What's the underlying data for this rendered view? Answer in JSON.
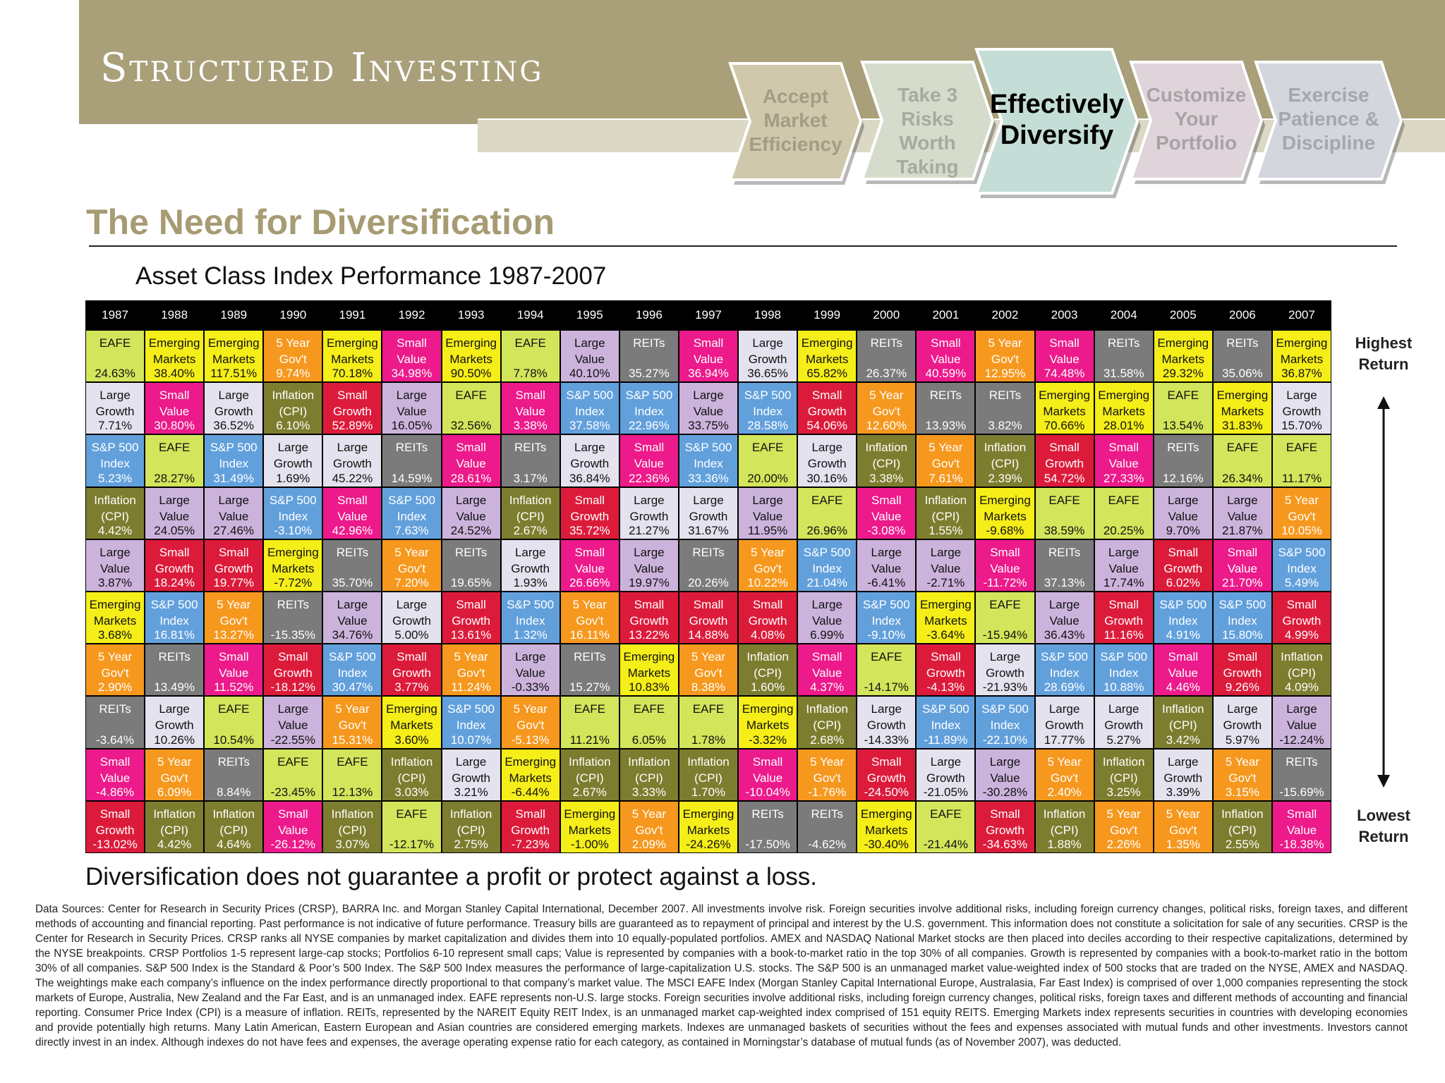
{
  "header": {
    "brand": "Structured Investing",
    "steps": [
      {
        "label": "Accept\nMarket\nEfficiency",
        "active": false,
        "fill": "#cfc8aa",
        "text_color": "#a39c87"
      },
      {
        "label": "Take 3\nRisks Worth\nTaking",
        "active": false,
        "fill": "#d6dccb",
        "text_color": "#a7ab9e"
      },
      {
        "label": "Effectively\nDiversify",
        "active": true,
        "fill": "#c4ddd7",
        "text_color": "#000000"
      },
      {
        "label": "Customize\nYour\nPortfolio",
        "active": false,
        "fill": "#dfd4da",
        "text_color": "#aaa1a6"
      },
      {
        "label": "Exercise\nPatience &\nDiscipline",
        "active": false,
        "fill": "#d3d6dd",
        "text_color": "#a4a7ae"
      }
    ]
  },
  "section_title": "The Need for Diversification",
  "chart_data": {
    "type": "table",
    "title": "Asset Class Index Performance 1987-2007",
    "years": [
      "1987",
      "1988",
      "1989",
      "1990",
      "1991",
      "1992",
      "1993",
      "1994",
      "1995",
      "1996",
      "1997",
      "1998",
      "1999",
      "2000",
      "2001",
      "2002",
      "2003",
      "2004",
      "2005",
      "2006",
      "2007"
    ],
    "rank_labels": {
      "top": "Highest\nReturn",
      "bottom": "Lowest\nReturn"
    },
    "asset_classes": {
      "EAFE": {
        "label": "EAFE",
        "color": "#d3e55a",
        "text": "#111111"
      },
      "EM": {
        "label": "Emerging\nMarkets",
        "color": "#f5ee18",
        "text": "#111111"
      },
      "LG": {
        "label": "Large\nGrowth",
        "color": "#e4e2ee",
        "text": "#111111"
      },
      "LV": {
        "label": "Large\nValue",
        "color": "#ccb3dc",
        "text": "#111111"
      },
      "SP": {
        "label": "S&P 500\nIndex",
        "color": "#62a0dc",
        "text": "#ffffff"
      },
      "SG": {
        "label": "Small\nGrowth",
        "color": "#dc1b3b",
        "text": "#ffffff"
      },
      "SV": {
        "label": "Small\nValue",
        "color": "#ec1a8a",
        "text": "#ffffff"
      },
      "5Y": {
        "label": "5 Year\nGov't",
        "color": "#f6981e",
        "text": "#ffffff"
      },
      "CPI": {
        "label": "Inflation\n(CPI)",
        "color": "#7d7d2f",
        "text": "#ffffff"
      },
      "REIT": {
        "label": "REITs",
        "color": "#7b7b7b",
        "text": "#ffffff"
      }
    },
    "columns": [
      [
        [
          "EAFE",
          "24.63%"
        ],
        [
          "LG",
          "7.71%"
        ],
        [
          "SP",
          "5.23%"
        ],
        [
          "CPI",
          "4.42%"
        ],
        [
          "LV",
          "3.87%"
        ],
        [
          "EM",
          "3.68%"
        ],
        [
          "5Y",
          "2.90%"
        ],
        [
          "REIT",
          "-3.64%"
        ],
        [
          "SV",
          "-4.86%"
        ],
        [
          "SG",
          "-13.02%"
        ]
      ],
      [
        [
          "EM",
          "38.40%"
        ],
        [
          "SV",
          "30.80%"
        ],
        [
          "EAFE",
          "28.27%"
        ],
        [
          "LV",
          "24.05%"
        ],
        [
          "SG",
          "18.24%"
        ],
        [
          "SP",
          "16.81%"
        ],
        [
          "REIT",
          "13.49%"
        ],
        [
          "LG",
          "10.26%"
        ],
        [
          "5Y",
          "6.09%"
        ],
        [
          "CPI",
          "4.42%"
        ]
      ],
      [
        [
          "EM",
          "117.51%"
        ],
        [
          "LG",
          "36.52%"
        ],
        [
          "SP",
          "31.49%"
        ],
        [
          "LV",
          "27.46%"
        ],
        [
          "SG",
          "19.77%"
        ],
        [
          "5Y",
          "13.27%"
        ],
        [
          "SV",
          "11.52%"
        ],
        [
          "EAFE",
          "10.54%"
        ],
        [
          "REIT",
          "8.84%"
        ],
        [
          "CPI",
          "4.64%"
        ]
      ],
      [
        [
          "5Y",
          "9.74%"
        ],
        [
          "CPI",
          "6.10%"
        ],
        [
          "LG",
          "1.69%"
        ],
        [
          "SP",
          "-3.10%"
        ],
        [
          "EM",
          "-7.72%"
        ],
        [
          "REIT",
          "-15.35%"
        ],
        [
          "SG",
          "-18.12%"
        ],
        [
          "LV",
          "-22.55%"
        ],
        [
          "EAFE",
          "-23.45%"
        ],
        [
          "SV",
          "-26.12%"
        ]
      ],
      [
        [
          "EM",
          "70.18%"
        ],
        [
          "SG",
          "52.89%"
        ],
        [
          "LG",
          "45.22%"
        ],
        [
          "SV",
          "42.96%"
        ],
        [
          "REIT",
          "35.70%"
        ],
        [
          "LV",
          "34.76%"
        ],
        [
          "SP",
          "30.47%"
        ],
        [
          "5Y",
          "15.31%"
        ],
        [
          "EAFE",
          "12.13%"
        ],
        [
          "CPI",
          "3.07%"
        ]
      ],
      [
        [
          "SV",
          "34.98%"
        ],
        [
          "LV",
          "16.05%"
        ],
        [
          "REIT",
          "14.59%"
        ],
        [
          "SP",
          "7.63%"
        ],
        [
          "5Y",
          "7.20%"
        ],
        [
          "LG",
          "5.00%"
        ],
        [
          "SG",
          "3.77%"
        ],
        [
          "EM",
          "3.60%"
        ],
        [
          "CPI",
          "3.03%"
        ],
        [
          "EAFE",
          "-12.17%"
        ]
      ],
      [
        [
          "EM",
          "90.50%"
        ],
        [
          "EAFE",
          "32.56%"
        ],
        [
          "SV",
          "28.61%"
        ],
        [
          "LV",
          "24.52%"
        ],
        [
          "REIT",
          "19.65%"
        ],
        [
          "SG",
          "13.61%"
        ],
        [
          "5Y",
          "11.24%"
        ],
        [
          "SP",
          "10.07%"
        ],
        [
          "LG",
          "3.21%"
        ],
        [
          "CPI",
          "2.75%"
        ]
      ],
      [
        [
          "EAFE",
          "7.78%"
        ],
        [
          "SV",
          "3.38%"
        ],
        [
          "REIT",
          "3.17%"
        ],
        [
          "CPI",
          "2.67%"
        ],
        [
          "LG",
          "1.93%"
        ],
        [
          "SP",
          "1.32%"
        ],
        [
          "LV",
          "-0.33%"
        ],
        [
          "5Y",
          "-5.13%"
        ],
        [
          "EM",
          "-6.44%"
        ],
        [
          "SG",
          "-7.23%"
        ]
      ],
      [
        [
          "LV",
          "40.10%"
        ],
        [
          "SP",
          "37.58%"
        ],
        [
          "LG",
          "36.84%"
        ],
        [
          "SG",
          "35.72%"
        ],
        [
          "SV",
          "26.66%"
        ],
        [
          "5Y",
          "16.11%"
        ],
        [
          "REIT",
          "15.27%"
        ],
        [
          "EAFE",
          "11.21%"
        ],
        [
          "CPI",
          "2.67%"
        ],
        [
          "EM",
          "-1.00%"
        ]
      ],
      [
        [
          "REIT",
          "35.27%"
        ],
        [
          "SP",
          "22.96%"
        ],
        [
          "SV",
          "22.36%"
        ],
        [
          "LG",
          "21.27%"
        ],
        [
          "LV",
          "19.97%"
        ],
        [
          "SG",
          "13.22%"
        ],
        [
          "EM",
          "10.83%"
        ],
        [
          "EAFE",
          "6.05%"
        ],
        [
          "CPI",
          "3.33%"
        ],
        [
          "5Y",
          "2.09%"
        ]
      ],
      [
        [
          "SV",
          "36.94%"
        ],
        [
          "LV",
          "33.75%"
        ],
        [
          "SP",
          "33.36%"
        ],
        [
          "LG",
          "31.67%"
        ],
        [
          "REIT",
          "20.26%"
        ],
        [
          "SG",
          "14.88%"
        ],
        [
          "5Y",
          "8.38%"
        ],
        [
          "EAFE",
          "1.78%"
        ],
        [
          "CPI",
          "1.70%"
        ],
        [
          "EM",
          "-24.26%"
        ]
      ],
      [
        [
          "LG",
          "36.65%"
        ],
        [
          "SP",
          "28.58%"
        ],
        [
          "EAFE",
          "20.00%"
        ],
        [
          "LV",
          "11.95%"
        ],
        [
          "5Y",
          "10.22%"
        ],
        [
          "SG",
          "4.08%"
        ],
        [
          "CPI",
          "1.60%"
        ],
        [
          "EM",
          "-3.32%"
        ],
        [
          "SV",
          "-10.04%"
        ],
        [
          "REIT",
          "-17.50%"
        ]
      ],
      [
        [
          "EM",
          "65.82%"
        ],
        [
          "SG",
          "54.06%"
        ],
        [
          "LG",
          "30.16%"
        ],
        [
          "EAFE",
          "26.96%"
        ],
        [
          "SP",
          "21.04%"
        ],
        [
          "LV",
          "6.99%"
        ],
        [
          "SV",
          "4.37%"
        ],
        [
          "CPI",
          "2.68%"
        ],
        [
          "5Y",
          "-1.76%"
        ],
        [
          "REIT",
          "-4.62%"
        ]
      ],
      [
        [
          "REIT",
          "26.37%"
        ],
        [
          "5Y",
          "12.60%"
        ],
        [
          "CPI",
          "3.38%"
        ],
        [
          "SV",
          "-3.08%"
        ],
        [
          "LV",
          "-6.41%"
        ],
        [
          "SP",
          "-9.10%"
        ],
        [
          "EAFE",
          "-14.17%"
        ],
        [
          "LG",
          "-14.33%"
        ],
        [
          "SG",
          "-24.50%"
        ],
        [
          "EM",
          "-30.40%"
        ]
      ],
      [
        [
          "SV",
          "40.59%"
        ],
        [
          "REIT",
          "13.93%"
        ],
        [
          "5Y",
          "7.61%"
        ],
        [
          "CPI",
          "1.55%"
        ],
        [
          "LV",
          "-2.71%"
        ],
        [
          "EM",
          "-3.64%"
        ],
        [
          "SG",
          "-4.13%"
        ],
        [
          "SP",
          "-11.89%"
        ],
        [
          "LG",
          "-21.05%"
        ],
        [
          "EAFE",
          "-21.44%"
        ]
      ],
      [
        [
          "5Y",
          "12.95%"
        ],
        [
          "REIT",
          "3.82%"
        ],
        [
          "CPI",
          "2.39%"
        ],
        [
          "EM",
          "-9.68%"
        ],
        [
          "SV",
          "-11.72%"
        ],
        [
          "EAFE",
          "-15.94%"
        ],
        [
          "LG",
          "-21.93%"
        ],
        [
          "SP",
          "-22.10%"
        ],
        [
          "LV",
          "-30.28%"
        ],
        [
          "SG",
          "-34.63%"
        ]
      ],
      [
        [
          "SV",
          "74.48%"
        ],
        [
          "EM",
          "70.66%"
        ],
        [
          "SG",
          "54.72%"
        ],
        [
          "EAFE",
          "38.59%"
        ],
        [
          "REIT",
          "37.13%"
        ],
        [
          "LV",
          "36.43%"
        ],
        [
          "SP",
          "28.69%"
        ],
        [
          "LG",
          "17.77%"
        ],
        [
          "5Y",
          "2.40%"
        ],
        [
          "CPI",
          "1.88%"
        ]
      ],
      [
        [
          "REIT",
          "31.58%"
        ],
        [
          "EM",
          "28.01%"
        ],
        [
          "SV",
          "27.33%"
        ],
        [
          "EAFE",
          "20.25%"
        ],
        [
          "LV",
          "17.74%"
        ],
        [
          "SG",
          "11.16%"
        ],
        [
          "SP",
          "10.88%"
        ],
        [
          "LG",
          "5.27%"
        ],
        [
          "CPI",
          "3.25%"
        ],
        [
          "5Y",
          "2.26%"
        ]
      ],
      [
        [
          "EM",
          "29.32%"
        ],
        [
          "EAFE",
          "13.54%"
        ],
        [
          "REIT",
          "12.16%"
        ],
        [
          "LV",
          "9.70%"
        ],
        [
          "SG",
          "6.02%"
        ],
        [
          "SP",
          "4.91%"
        ],
        [
          "SV",
          "4.46%"
        ],
        [
          "CPI",
          "3.42%"
        ],
        [
          "LG",
          "3.39%"
        ],
        [
          "5Y",
          "1.35%"
        ]
      ],
      [
        [
          "REIT",
          "35.06%"
        ],
        [
          "EM",
          "31.83%"
        ],
        [
          "EAFE",
          "26.34%"
        ],
        [
          "LV",
          "21.87%"
        ],
        [
          "SV",
          "21.70%"
        ],
        [
          "SP",
          "15.80%"
        ],
        [
          "SG",
          "9.26%"
        ],
        [
          "LG",
          "5.97%"
        ],
        [
          "5Y",
          "3.15%"
        ],
        [
          "CPI",
          "2.55%"
        ]
      ],
      [
        [
          "EM",
          "36.87%"
        ],
        [
          "LG",
          "15.70%"
        ],
        [
          "EAFE",
          "11.17%"
        ],
        [
          "5Y",
          "10.05%"
        ],
        [
          "SP",
          "5.49%"
        ],
        [
          "SG",
          "4.99%"
        ],
        [
          "CPI",
          "4.09%"
        ],
        [
          "LV",
          "-12.24%"
        ],
        [
          "REIT",
          "-15.69%"
        ],
        [
          "SV",
          "-18.38%"
        ]
      ]
    ]
  },
  "disclaimer": "Diversification does not guarantee a profit or protect against a loss.",
  "footnote": "Data Sources: Center for Research in Security Prices (CRSP), BARRA Inc. and Morgan Stanley Capital International, December 2007. All investments involve risk. Foreign securities involve additional risks, including foreign currency changes, political risks, foreign taxes, and different methods of accounting and financial reporting. Past performance is not indicative of future performance. Treasury bills are guaranteed as to repayment of principal and interest by the U.S. government. This information does not constitute a solicitation for sale of any securities. CRSP is the Center for Research in Security Prices. CRSP ranks all NYSE companies by market capitalization and divides them into 10 equally-populated portfolios. AMEX and NASDAQ National Market stocks are then placed into deciles according to their respective capitalizations, determined by the NYSE breakpoints. CRSP Portfolios 1-5 represent large-cap stocks; Portfolios 6-10 represent small caps; Value is represented by companies with a book-to-market ratio in the top 30% of all companies. Growth is represented by companies with a book-to-market ratio in the bottom 30% of all companies. S&P 500 Index is the Standard & Poor’s 500 Index. The S&P 500 Index measures the performance of large-capitalization U.S. stocks. The S&P 500 is an unmanaged market value-weighted index of 500 stocks that are traded on the NYSE, AMEX and NASDAQ. The weightings make each company’s influence on the index performance directly proportional to that company’s market value. The MSCI EAFE Index (Morgan Stanley Capital International Europe, Australasia, Far East Index) is comprised of over 1,000 companies representing the stock markets of Europe, Australia, New Zealand and the Far East, and is an unmanaged index. EAFE represents non-U.S. large stocks. Foreign securities involve additional risks, including foreign currency changes, political risks, foreign taxes and different methods of accounting and financial reporting. Consumer Price Index (CPI) is a measure of inflation. REITs, represented by the NAREIT Equity REIT Index, is an unmanaged market cap-weighted index comprised of 151 equity REITS. Emerging Markets index represents securities in countries with developing economies and provide potentially high returns. Many Latin American, Eastern European and Asian countries are considered emerging markets. Indexes are unmanaged baskets of securities without the fees and expenses associated with mutual funds and other investments. Investors cannot directly invest in an index. Although indexes do not have fees and expenses, the average operating expense ratio for each category, as contained in Morningstar’s database of mutual funds (as of November 2007), was deducted."
}
